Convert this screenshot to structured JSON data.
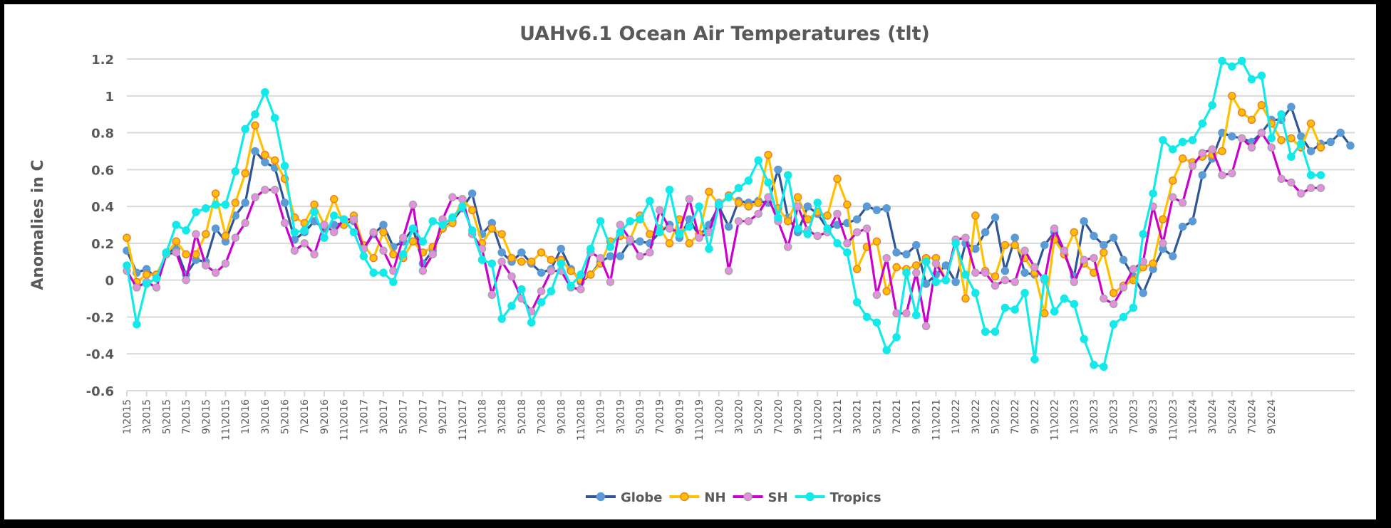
{
  "chart_data": {
    "type": "line",
    "title": "UAHv6.1 Ocean Air Temperatures (tlt)",
    "xlabel": "",
    "ylabel": "Anomalies in C",
    "ylim": [
      -0.6,
      1.2
    ],
    "yticks": [
      1.2,
      1,
      0.8,
      0.6,
      0.4,
      0.2,
      0,
      -0.2,
      -0.4,
      -0.6
    ],
    "ytick_labels": [
      "1.2",
      "1",
      "0.8",
      "0.6",
      "0.4",
      "0.2",
      "0",
      "-0.2",
      "-0.4",
      "-0.6"
    ],
    "grid": true,
    "legend_position": "bottom",
    "x_start": "1\\2015",
    "x_end": "10\\2024",
    "xtick_labels": [
      "1\\2015",
      "3\\2015",
      "5\\2015",
      "7\\2015",
      "9\\2015",
      "11\\2015",
      "1\\2016",
      "3\\2016",
      "5\\2016",
      "7\\2016",
      "9\\2016",
      "11\\2016",
      "1\\2017",
      "3\\2017",
      "5\\2017",
      "7\\2017",
      "9\\2017",
      "11\\2017",
      "1\\2018",
      "3\\2018",
      "5\\2018",
      "7\\2018",
      "9\\2018",
      "11\\2018",
      "1\\2019",
      "3\\2019",
      "5\\2019",
      "7\\2019",
      "9\\2019",
      "11\\2019",
      "1\\2020",
      "3\\2020",
      "5\\2020",
      "7\\2020",
      "9\\2020",
      "11\\2020",
      "1\\2021",
      "3\\2021",
      "5\\2021",
      "7\\2021",
      "9\\2021",
      "11\\2021",
      "1\\2022",
      "3\\2022",
      "5\\2022",
      "7\\2022",
      "9\\2022",
      "11\\2022",
      "1\\2023",
      "3\\2023",
      "5\\2023",
      "7\\2023",
      "9\\2023",
      "11\\2023",
      "1\\2024",
      "3\\2024",
      "5\\2024",
      "7\\2024",
      "9\\2024"
    ],
    "series": [
      {
        "name": "Globe",
        "line_color": "#2F5597",
        "marker_color": "#5B9BD5",
        "marker_border": "#5B9BD5",
        "values": [
          0.16,
          0.04,
          0.06,
          0.01,
          0.15,
          0.17,
          0.03,
          0.11,
          0.1,
          0.28,
          0.21,
          0.35,
          0.42,
          0.7,
          0.64,
          0.61,
          0.42,
          0.22,
          0.26,
          0.32,
          0.28,
          0.3,
          0.31,
          0.32,
          0.17,
          0.25,
          0.3,
          0.18,
          0.21,
          0.28,
          0.09,
          0.16,
          0.28,
          0.32,
          0.39,
          0.47,
          0.25,
          0.31,
          0.15,
          0.1,
          0.15,
          0.09,
          0.04,
          0.06,
          0.17,
          0.06,
          -0.01,
          0.03,
          0.1,
          0.13,
          0.13,
          0.21,
          0.21,
          0.2,
          0.26,
          0.3,
          0.23,
          0.33,
          0.24,
          0.3,
          0.4,
          0.29,
          0.43,
          0.42,
          0.43,
          0.42,
          0.6,
          0.34,
          0.26,
          0.4,
          0.36,
          0.28,
          0.3,
          0.31,
          0.33,
          0.4,
          0.38,
          0.39,
          0.15,
          0.14,
          0.19,
          -0.02,
          0.03,
          0.08,
          -0.01,
          0.2,
          0.17,
          0.26,
          0.34,
          0.05,
          0.23,
          0.04,
          0.03,
          0.19,
          0.26,
          0.14,
          0.02,
          0.32,
          0.24,
          0.19,
          0.23,
          0.11,
          0.02,
          -0.07,
          0.06,
          0.17,
          0.13,
          0.29,
          0.32,
          0.57,
          0.66,
          0.8,
          0.78,
          0.77,
          0.75,
          0.8,
          0.87,
          0.87,
          0.94,
          0.78,
          0.7,
          0.74,
          0.75,
          0.8,
          0.73
        ]
      },
      {
        "name": "NH",
        "line_color": "#FFC000",
        "marker_color": "#FFC000",
        "marker_border": "#ED7D31",
        "values": [
          0.23,
          -0.01,
          0.03,
          0.03,
          0.14,
          0.21,
          0.14,
          0.14,
          0.25,
          0.47,
          0.24,
          0.42,
          0.58,
          0.84,
          0.68,
          0.65,
          0.55,
          0.34,
          0.31,
          0.41,
          0.3,
          0.44,
          0.3,
          0.35,
          0.19,
          0.12,
          0.26,
          0.14,
          0.12,
          0.21,
          0.15,
          0.18,
          0.28,
          0.31,
          0.44,
          0.38,
          0.2,
          0.28,
          0.25,
          0.12,
          0.1,
          0.1,
          0.15,
          0.11,
          0.11,
          0.05,
          0.0,
          0.03,
          0.09,
          0.21,
          0.24,
          0.22,
          0.35,
          0.25,
          0.28,
          0.2,
          0.33,
          0.2,
          0.25,
          0.48,
          0.41,
          0.46,
          0.42,
          0.4,
          0.42,
          0.68,
          0.39,
          0.32,
          0.45,
          0.33,
          0.37,
          0.35,
          0.55,
          0.41,
          0.06,
          0.18,
          0.21,
          -0.06,
          0.07,
          0.06,
          0.08,
          0.12,
          0.12,
          0.0,
          0.22,
          -0.1,
          0.35,
          0.05,
          0.02,
          0.19,
          0.19,
          0.12,
          0.04,
          -0.18,
          0.22,
          0.14,
          0.26,
          0.09,
          0.04,
          0.15,
          -0.07,
          -0.03,
          0.0,
          0.07,
          0.09,
          0.33,
          0.54,
          0.66,
          0.64,
          0.67,
          0.68,
          0.7,
          1.0,
          0.91,
          0.87,
          0.95,
          0.85,
          0.76,
          0.77,
          0.72,
          0.85,
          0.72
        ]
      },
      {
        "name": "SH",
        "line_color": "#CC00CC",
        "marker_color": "#E68FE0",
        "marker_border": "#A6A6A6",
        "values": [
          0.05,
          -0.04,
          -0.01,
          -0.04,
          0.14,
          0.15,
          0.0,
          0.25,
          0.08,
          0.04,
          0.09,
          0.23,
          0.31,
          0.45,
          0.49,
          0.49,
          0.31,
          0.16,
          0.2,
          0.14,
          0.3,
          0.26,
          0.33,
          0.33,
          0.17,
          0.26,
          0.16,
          0.05,
          0.23,
          0.41,
          0.05,
          0.14,
          0.33,
          0.45,
          0.44,
          0.25,
          0.17,
          -0.08,
          0.1,
          0.02,
          -0.1,
          -0.17,
          -0.06,
          0.05,
          0.05,
          -0.04,
          -0.05,
          0.15,
          0.12,
          -0.01,
          0.3,
          0.22,
          0.13,
          0.15,
          0.38,
          0.28,
          0.26,
          0.44,
          0.23,
          0.26,
          0.42,
          0.05,
          0.32,
          0.32,
          0.36,
          0.45,
          0.32,
          0.18,
          0.4,
          0.27,
          0.24,
          0.26,
          0.36,
          0.2,
          0.26,
          0.28,
          -0.08,
          0.12,
          -0.18,
          -0.18,
          0.04,
          -0.25,
          0.09,
          0.0,
          0.22,
          0.23,
          0.04,
          0.04,
          -0.03,
          0.0,
          -0.01,
          0.16,
          0.07,
          0.0,
          0.28,
          0.16,
          -0.01,
          0.11,
          0.12,
          -0.1,
          -0.13,
          -0.04,
          0.06,
          0.1,
          0.4,
          0.2,
          0.45,
          0.42,
          0.62,
          0.69,
          0.71,
          0.57,
          0.58,
          0.77,
          0.72,
          0.8,
          0.72,
          0.55,
          0.53,
          0.47,
          0.5,
          0.5
        ]
      },
      {
        "name": "Tropics",
        "line_color": "#13E9E9",
        "marker_color": "#13E9E9",
        "marker_border": "#13E9E9",
        "values": [
          0.08,
          -0.24,
          -0.02,
          0.01,
          0.15,
          0.3,
          0.27,
          0.37,
          0.39,
          0.41,
          0.41,
          0.59,
          0.82,
          0.9,
          1.02,
          0.88,
          0.62,
          0.26,
          0.27,
          0.37,
          0.23,
          0.35,
          0.33,
          0.26,
          0.13,
          0.04,
          0.04,
          -0.01,
          0.14,
          0.28,
          0.21,
          0.32,
          0.3,
          0.34,
          0.4,
          0.27,
          0.11,
          0.09,
          -0.21,
          -0.14,
          -0.05,
          -0.23,
          -0.12,
          -0.06,
          0.09,
          -0.03,
          0.03,
          0.17,
          0.32,
          0.18,
          0.26,
          0.32,
          0.33,
          0.43,
          0.26,
          0.49,
          0.25,
          0.29,
          0.4,
          0.17,
          0.41,
          0.45,
          0.5,
          0.54,
          0.65,
          0.53,
          0.34,
          0.57,
          0.28,
          0.25,
          0.42,
          0.28,
          0.2,
          0.15,
          -0.12,
          -0.2,
          -0.23,
          -0.38,
          -0.31,
          0.04,
          -0.19,
          0.1,
          -0.01,
          0.0,
          0.2,
          0.03,
          -0.07,
          -0.28,
          -0.28,
          -0.15,
          -0.16,
          -0.07,
          -0.43,
          0.01,
          -0.17,
          -0.1,
          -0.13,
          -0.32,
          -0.46,
          -0.47,
          -0.24,
          -0.2,
          -0.15,
          0.25,
          0.47,
          0.76,
          0.71,
          0.75,
          0.76,
          0.85,
          0.95,
          1.19,
          1.16,
          1.19,
          1.09,
          1.11,
          0.77,
          0.9,
          0.67,
          0.74,
          0.57,
          0.57
        ]
      }
    ]
  }
}
